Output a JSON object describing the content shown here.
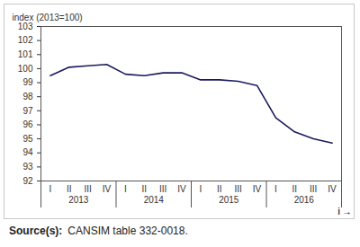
{
  "chart_data": {
    "type": "line",
    "y_label": "index (2013=100)",
    "categories": [
      "I",
      "II",
      "III",
      "IV",
      "I",
      "II",
      "III",
      "IV",
      "I",
      "II",
      "III",
      "IV",
      "I",
      "II",
      "III",
      "IV"
    ],
    "years": [
      "2013",
      "2014",
      "2015",
      "2016"
    ],
    "values": [
      99.5,
      100.1,
      100.2,
      100.3,
      99.6,
      99.5,
      99.7,
      99.7,
      99.2,
      99.2,
      99.1,
      98.8,
      96.5,
      95.5,
      95.0,
      94.7
    ],
    "color": "#1a1a5e",
    "ylim": [
      92,
      103
    ],
    "yticks": [
      92,
      93,
      94,
      95,
      96,
      97,
      98,
      99,
      100,
      101,
      102,
      103
    ],
    "grid": false,
    "source": {
      "label": "Source(s):",
      "text": "CANSIM table 332-0018."
    }
  }
}
